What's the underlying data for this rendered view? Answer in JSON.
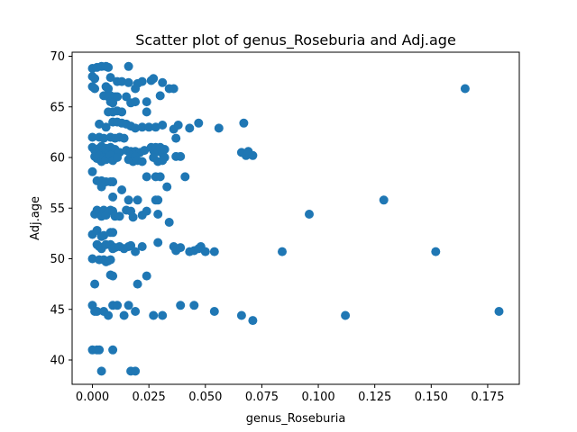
{
  "chart_data": {
    "type": "scatter",
    "title": "Scatter plot of genus_Roseburia and Adj.age",
    "xlabel": "genus_Roseburia",
    "ylabel": "Adj.age",
    "xlim": [
      -0.009,
      0.189
    ],
    "ylim": [
      37.6,
      70.4
    ],
    "xticks": [
      0.0,
      0.025,
      0.05,
      0.075,
      0.1,
      0.125,
      0.15,
      0.175
    ],
    "xtick_labels": [
      "0.000",
      "0.025",
      "0.050",
      "0.075",
      "0.100",
      "0.125",
      "0.150",
      "0.175"
    ],
    "yticks": [
      40,
      45,
      50,
      55,
      60,
      65,
      70
    ],
    "ytick_labels": [
      "40",
      "45",
      "50",
      "55",
      "60",
      "65",
      "70"
    ],
    "grid": false,
    "marker_color": "#1f77b4",
    "points": [
      {
        "x": 0.0,
        "y": 68.8
      },
      {
        "x": 0.002,
        "y": 68.9
      },
      {
        "x": 0.004,
        "y": 69.0
      },
      {
        "x": 0.006,
        "y": 69.0
      },
      {
        "x": 0.007,
        "y": 68.9
      },
      {
        "x": 0.016,
        "y": 69.0
      },
      {
        "x": 0.0,
        "y": 68.0
      },
      {
        "x": 0.001,
        "y": 67.8
      },
      {
        "x": 0.008,
        "y": 67.9
      },
      {
        "x": 0.011,
        "y": 67.5
      },
      {
        "x": 0.013,
        "y": 67.5
      },
      {
        "x": 0.016,
        "y": 67.4
      },
      {
        "x": 0.02,
        "y": 67.3
      },
      {
        "x": 0.022,
        "y": 67.5
      },
      {
        "x": 0.026,
        "y": 67.6
      },
      {
        "x": 0.027,
        "y": 67.8
      },
      {
        "x": 0.031,
        "y": 67.4
      },
      {
        "x": 0.0,
        "y": 67.0
      },
      {
        "x": 0.001,
        "y": 66.8
      },
      {
        "x": 0.006,
        "y": 67.0
      },
      {
        "x": 0.007,
        "y": 66.8
      },
      {
        "x": 0.019,
        "y": 66.8
      },
      {
        "x": 0.034,
        "y": 66.8
      },
      {
        "x": 0.036,
        "y": 66.8
      },
      {
        "x": 0.165,
        "y": 66.8
      },
      {
        "x": 0.005,
        "y": 66.1
      },
      {
        "x": 0.007,
        "y": 66.0
      },
      {
        "x": 0.008,
        "y": 66.1
      },
      {
        "x": 0.01,
        "y": 66.0
      },
      {
        "x": 0.011,
        "y": 66.0
      },
      {
        "x": 0.015,
        "y": 66.0
      },
      {
        "x": 0.03,
        "y": 66.1
      },
      {
        "x": 0.008,
        "y": 65.5
      },
      {
        "x": 0.009,
        "y": 65.4
      },
      {
        "x": 0.017,
        "y": 65.4
      },
      {
        "x": 0.019,
        "y": 65.5
      },
      {
        "x": 0.024,
        "y": 65.5
      },
      {
        "x": 0.007,
        "y": 64.5
      },
      {
        "x": 0.009,
        "y": 64.5
      },
      {
        "x": 0.011,
        "y": 64.6
      },
      {
        "x": 0.013,
        "y": 64.5
      },
      {
        "x": 0.024,
        "y": 64.5
      },
      {
        "x": 0.003,
        "y": 63.3
      },
      {
        "x": 0.006,
        "y": 63.0
      },
      {
        "x": 0.009,
        "y": 63.5
      },
      {
        "x": 0.011,
        "y": 63.5
      },
      {
        "x": 0.013,
        "y": 63.4
      },
      {
        "x": 0.015,
        "y": 63.3
      },
      {
        "x": 0.017,
        "y": 63.1
      },
      {
        "x": 0.019,
        "y": 62.9
      },
      {
        "x": 0.022,
        "y": 63.0
      },
      {
        "x": 0.025,
        "y": 63.0
      },
      {
        "x": 0.028,
        "y": 63.0
      },
      {
        "x": 0.031,
        "y": 63.2
      },
      {
        "x": 0.036,
        "y": 62.8
      },
      {
        "x": 0.038,
        "y": 63.2
      },
      {
        "x": 0.043,
        "y": 62.9
      },
      {
        "x": 0.047,
        "y": 63.4
      },
      {
        "x": 0.056,
        "y": 62.9
      },
      {
        "x": 0.067,
        "y": 63.4
      },
      {
        "x": 0.0,
        "y": 62.0
      },
      {
        "x": 0.003,
        "y": 62.0
      },
      {
        "x": 0.005,
        "y": 61.9
      },
      {
        "x": 0.008,
        "y": 62.0
      },
      {
        "x": 0.01,
        "y": 61.9
      },
      {
        "x": 0.012,
        "y": 62.0
      },
      {
        "x": 0.014,
        "y": 61.9
      },
      {
        "x": 0.037,
        "y": 61.9
      },
      {
        "x": 0.0,
        "y": 61.0
      },
      {
        "x": 0.001,
        "y": 60.7
      },
      {
        "x": 0.002,
        "y": 60.5
      },
      {
        "x": 0.003,
        "y": 60.9
      },
      {
        "x": 0.004,
        "y": 61.1
      },
      {
        "x": 0.005,
        "y": 60.6
      },
      {
        "x": 0.006,
        "y": 60.9
      },
      {
        "x": 0.007,
        "y": 60.4
      },
      {
        "x": 0.008,
        "y": 61.0
      },
      {
        "x": 0.009,
        "y": 60.7
      },
      {
        "x": 0.01,
        "y": 60.8
      },
      {
        "x": 0.012,
        "y": 60.5
      },
      {
        "x": 0.015,
        "y": 60.7
      },
      {
        "x": 0.017,
        "y": 60.6
      },
      {
        "x": 0.019,
        "y": 60.6
      },
      {
        "x": 0.021,
        "y": 60.5
      },
      {
        "x": 0.023,
        "y": 60.7
      },
      {
        "x": 0.026,
        "y": 61.0
      },
      {
        "x": 0.027,
        "y": 60.7
      },
      {
        "x": 0.028,
        "y": 61.0
      },
      {
        "x": 0.029,
        "y": 60.6
      },
      {
        "x": 0.03,
        "y": 61.0
      },
      {
        "x": 0.031,
        "y": 60.4
      },
      {
        "x": 0.032,
        "y": 60.8
      },
      {
        "x": 0.066,
        "y": 60.5
      },
      {
        "x": 0.068,
        "y": 60.2
      },
      {
        "x": 0.069,
        "y": 60.6
      },
      {
        "x": 0.071,
        "y": 60.2
      },
      {
        "x": 0.001,
        "y": 60.1
      },
      {
        "x": 0.002,
        "y": 59.9
      },
      {
        "x": 0.003,
        "y": 60.2
      },
      {
        "x": 0.004,
        "y": 59.6
      },
      {
        "x": 0.005,
        "y": 60.0
      },
      {
        "x": 0.006,
        "y": 59.8
      },
      {
        "x": 0.008,
        "y": 60.2
      },
      {
        "x": 0.009,
        "y": 59.7
      },
      {
        "x": 0.011,
        "y": 60.0
      },
      {
        "x": 0.016,
        "y": 59.8
      },
      {
        "x": 0.017,
        "y": 60.2
      },
      {
        "x": 0.018,
        "y": 59.6
      },
      {
        "x": 0.019,
        "y": 60.1
      },
      {
        "x": 0.02,
        "y": 59.7
      },
      {
        "x": 0.022,
        "y": 59.6
      },
      {
        "x": 0.027,
        "y": 60.0
      },
      {
        "x": 0.029,
        "y": 59.6
      },
      {
        "x": 0.031,
        "y": 59.7
      },
      {
        "x": 0.032,
        "y": 60.0
      },
      {
        "x": 0.037,
        "y": 60.1
      },
      {
        "x": 0.039,
        "y": 60.1
      },
      {
        "x": 0.0,
        "y": 58.6
      },
      {
        "x": 0.041,
        "y": 58.1
      },
      {
        "x": 0.024,
        "y": 58.1
      },
      {
        "x": 0.028,
        "y": 58.1
      },
      {
        "x": 0.03,
        "y": 58.1
      },
      {
        "x": 0.002,
        "y": 57.7
      },
      {
        "x": 0.004,
        "y": 57.7
      },
      {
        "x": 0.006,
        "y": 57.6
      },
      {
        "x": 0.008,
        "y": 57.6
      },
      {
        "x": 0.009,
        "y": 57.6
      },
      {
        "x": 0.004,
        "y": 57.1
      },
      {
        "x": 0.013,
        "y": 56.8
      },
      {
        "x": 0.033,
        "y": 57.1
      },
      {
        "x": 0.009,
        "y": 56.1
      },
      {
        "x": 0.016,
        "y": 55.8
      },
      {
        "x": 0.02,
        "y": 55.8
      },
      {
        "x": 0.028,
        "y": 55.8
      },
      {
        "x": 0.029,
        "y": 55.8
      },
      {
        "x": 0.129,
        "y": 55.8
      },
      {
        "x": 0.001,
        "y": 54.4
      },
      {
        "x": 0.002,
        "y": 54.8
      },
      {
        "x": 0.003,
        "y": 54.6
      },
      {
        "x": 0.004,
        "y": 54.2
      },
      {
        "x": 0.005,
        "y": 54.8
      },
      {
        "x": 0.006,
        "y": 54.3
      },
      {
        "x": 0.008,
        "y": 54.8
      },
      {
        "x": 0.009,
        "y": 54.7
      },
      {
        "x": 0.01,
        "y": 54.2
      },
      {
        "x": 0.012,
        "y": 54.2
      },
      {
        "x": 0.015,
        "y": 54.8
      },
      {
        "x": 0.017,
        "y": 54.7
      },
      {
        "x": 0.018,
        "y": 54.1
      },
      {
        "x": 0.022,
        "y": 54.3
      },
      {
        "x": 0.024,
        "y": 54.7
      },
      {
        "x": 0.029,
        "y": 54.4
      },
      {
        "x": 0.034,
        "y": 53.6
      },
      {
        "x": 0.096,
        "y": 54.4
      },
      {
        "x": 0.0,
        "y": 52.4
      },
      {
        "x": 0.002,
        "y": 52.8
      },
      {
        "x": 0.004,
        "y": 52.2
      },
      {
        "x": 0.005,
        "y": 52.3
      },
      {
        "x": 0.008,
        "y": 52.6
      },
      {
        "x": 0.009,
        "y": 52.6
      },
      {
        "x": 0.002,
        "y": 51.4
      },
      {
        "x": 0.003,
        "y": 51.2
      },
      {
        "x": 0.004,
        "y": 51.0
      },
      {
        "x": 0.006,
        "y": 51.4
      },
      {
        "x": 0.008,
        "y": 51.4
      },
      {
        "x": 0.009,
        "y": 51.0
      },
      {
        "x": 0.01,
        "y": 51.1
      },
      {
        "x": 0.012,
        "y": 51.2
      },
      {
        "x": 0.014,
        "y": 51.0
      },
      {
        "x": 0.016,
        "y": 51.2
      },
      {
        "x": 0.017,
        "y": 51.3
      },
      {
        "x": 0.019,
        "y": 50.7
      },
      {
        "x": 0.022,
        "y": 51.2
      },
      {
        "x": 0.029,
        "y": 51.6
      },
      {
        "x": 0.036,
        "y": 51.2
      },
      {
        "x": 0.037,
        "y": 50.8
      },
      {
        "x": 0.039,
        "y": 51.1
      },
      {
        "x": 0.043,
        "y": 50.7
      },
      {
        "x": 0.045,
        "y": 50.8
      },
      {
        "x": 0.047,
        "y": 51.0
      },
      {
        "x": 0.048,
        "y": 51.2
      },
      {
        "x": 0.05,
        "y": 50.7
      },
      {
        "x": 0.054,
        "y": 50.7
      },
      {
        "x": 0.084,
        "y": 50.7
      },
      {
        "x": 0.152,
        "y": 50.7
      },
      {
        "x": 0.0,
        "y": 50.0
      },
      {
        "x": 0.003,
        "y": 49.9
      },
      {
        "x": 0.005,
        "y": 49.9
      },
      {
        "x": 0.006,
        "y": 49.7
      },
      {
        "x": 0.007,
        "y": 49.8
      },
      {
        "x": 0.008,
        "y": 49.9
      },
      {
        "x": 0.008,
        "y": 48.4
      },
      {
        "x": 0.009,
        "y": 48.3
      },
      {
        "x": 0.024,
        "y": 48.3
      },
      {
        "x": 0.001,
        "y": 47.5
      },
      {
        "x": 0.02,
        "y": 47.5
      },
      {
        "x": 0.0,
        "y": 45.4
      },
      {
        "x": 0.001,
        "y": 44.8
      },
      {
        "x": 0.002,
        "y": 44.8
      },
      {
        "x": 0.005,
        "y": 44.8
      },
      {
        "x": 0.007,
        "y": 44.4
      },
      {
        "x": 0.009,
        "y": 45.4
      },
      {
        "x": 0.011,
        "y": 45.4
      },
      {
        "x": 0.014,
        "y": 44.4
      },
      {
        "x": 0.016,
        "y": 45.4
      },
      {
        "x": 0.019,
        "y": 44.8
      },
      {
        "x": 0.027,
        "y": 44.4
      },
      {
        "x": 0.031,
        "y": 44.4
      },
      {
        "x": 0.039,
        "y": 45.4
      },
      {
        "x": 0.045,
        "y": 45.4
      },
      {
        "x": 0.054,
        "y": 44.8
      },
      {
        "x": 0.066,
        "y": 44.4
      },
      {
        "x": 0.071,
        "y": 43.9
      },
      {
        "x": 0.112,
        "y": 44.4
      },
      {
        "x": 0.18,
        "y": 44.8
      },
      {
        "x": 0.0,
        "y": 41.0
      },
      {
        "x": 0.002,
        "y": 41.0
      },
      {
        "x": 0.003,
        "y": 41.0
      },
      {
        "x": 0.009,
        "y": 41.0
      },
      {
        "x": 0.004,
        "y": 38.9
      },
      {
        "x": 0.017,
        "y": 38.9
      },
      {
        "x": 0.019,
        "y": 38.9
      }
    ]
  }
}
